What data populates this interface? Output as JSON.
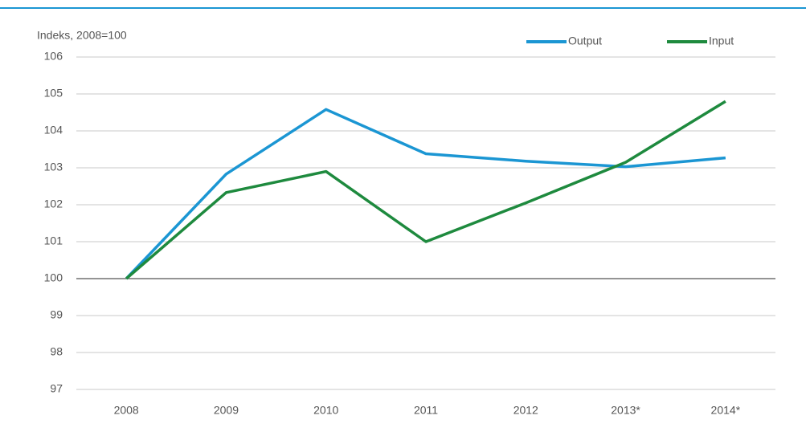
{
  "chart_data": {
    "type": "line",
    "y_label": "Indeks, 2008=100",
    "categories": [
      "2008",
      "2009",
      "2010",
      "2011",
      "2012",
      "2013*",
      "2014*"
    ],
    "series": [
      {
        "name": "Output",
        "color": "#1b96d3",
        "values": [
          100,
          102.83,
          104.58,
          103.38,
          103.18,
          103.03,
          103.27
        ]
      },
      {
        "name": "Input",
        "color": "#1e8a3e",
        "values": [
          100,
          102.33,
          102.9,
          101.0,
          102.05,
          103.15,
          104.8
        ]
      }
    ],
    "ylim": [
      97,
      106
    ],
    "yticks": [
      97,
      98,
      99,
      100,
      101,
      102,
      103,
      104,
      105,
      106
    ],
    "baseline": 100,
    "grid": true,
    "legend": "top-right"
  }
}
